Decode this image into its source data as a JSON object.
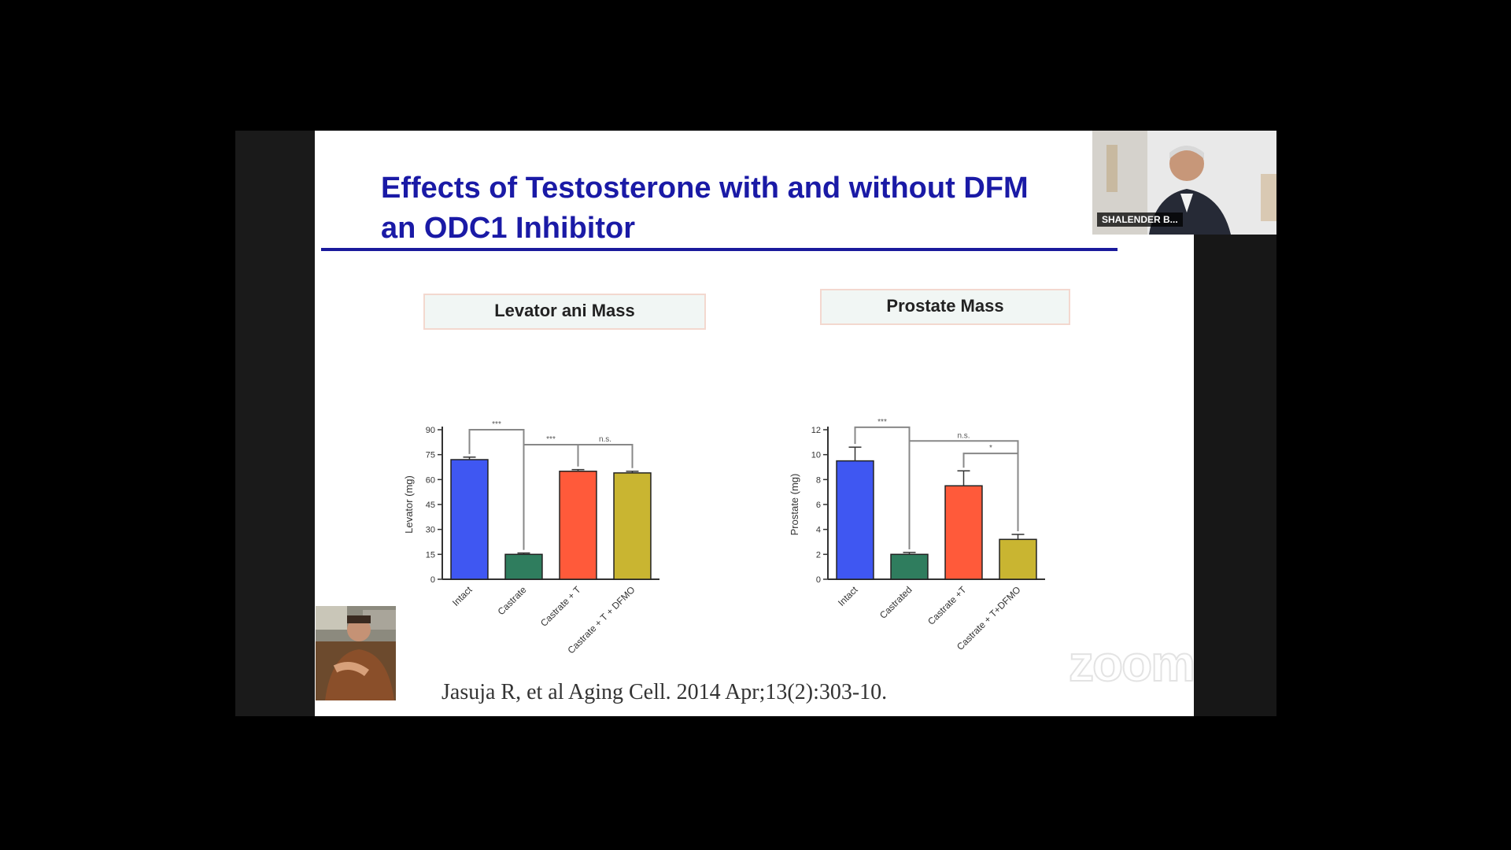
{
  "slide": {
    "title_line1": "Effects of Testosterone with and without DFM",
    "title_line2": "an ODC1 Inhibitor",
    "citation": "Jasuja R, et al Aging Cell. 2014 Apr;13(2):303-10."
  },
  "panels": {
    "left_label": "Levator ani Mass",
    "right_label": "Prostate Mass"
  },
  "zoom": {
    "watermark": "zoom"
  },
  "speaker": {
    "name": "SHALENDER B..."
  },
  "colors": {
    "title": "#1a1aa6",
    "intact": "#3f57f2",
    "castrate": "#2f7d5e",
    "castrate_t": "#ff5a3a",
    "castrate_t_dfmo": "#c9b531"
  },
  "chart_data": [
    {
      "type": "bar",
      "title": "Levator ani Mass",
      "ylabel": "Levator (mg)",
      "ylim": [
        0,
        90
      ],
      "yticks": [
        0,
        15,
        30,
        45,
        60,
        75,
        90
      ],
      "categories": [
        "Intact",
        "Castrate",
        "Castrate + T",
        "Castrate + T + DFMO"
      ],
      "values": [
        72,
        15,
        65,
        64
      ],
      "errors": [
        1.5,
        0.8,
        1.0,
        1.0
      ],
      "colors": [
        "#3f57f2",
        "#2f7d5e",
        "#ff5a3a",
        "#c9b531"
      ],
      "significance": [
        {
          "from": 0,
          "to": 1,
          "label": "***",
          "level": 90
        },
        {
          "from": 1,
          "to": 2,
          "label": "***",
          "level": 81
        },
        {
          "from": 2,
          "to": 3,
          "label": "n.s.",
          "level": 81
        }
      ]
    },
    {
      "type": "bar",
      "title": "Prostate Mass",
      "ylabel": "Prostate (mg)",
      "ylim": [
        0,
        12
      ],
      "yticks": [
        0,
        2,
        4,
        6,
        8,
        10,
        12
      ],
      "categories": [
        "Intact",
        "Castrated",
        "Castrate +T",
        "Castrate + T+DFMO"
      ],
      "values": [
        9.5,
        2.0,
        7.5,
        3.2
      ],
      "errors": [
        1.1,
        0.15,
        1.2,
        0.4
      ],
      "colors": [
        "#3f57f2",
        "#2f7d5e",
        "#ff5a3a",
        "#c9b531"
      ],
      "significance": [
        {
          "from": 0,
          "to": 1,
          "label": "***",
          "level": 12.2
        },
        {
          "from": 1,
          "to": 3,
          "label": "n.s.",
          "level": 11.1
        },
        {
          "from": 2,
          "to": 3,
          "label": "*",
          "level": 10.1
        }
      ]
    }
  ]
}
